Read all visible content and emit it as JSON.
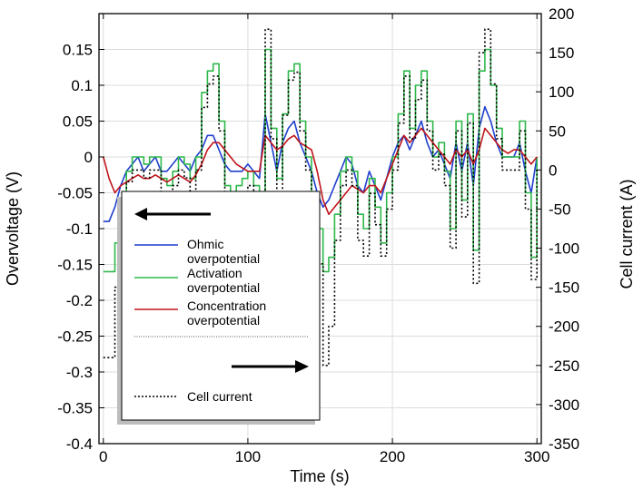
{
  "chart_data": {
    "type": "line",
    "xlabel": "Time (s)",
    "ylabel_left": "Overvoltage (V)",
    "ylabel_right": "Cell current (A)",
    "xlim": [
      -3,
      303
    ],
    "ylim_left": [
      -0.4,
      0.2
    ],
    "ylim_right": [
      -350,
      200
    ],
    "x_ticks": [
      0,
      100,
      200,
      300
    ],
    "y_ticks_left": [
      -0.4,
      -0.35,
      -0.3,
      -0.25,
      -0.2,
      -0.15,
      -0.1,
      -0.05,
      0,
      0.05,
      0.1,
      0.15
    ],
    "y_ticks_left_labels": [
      "-0.4",
      "-0.35",
      "-0.3",
      "-0.25",
      "-0.2",
      "-0.15",
      "-0.1",
      "-0.05",
      "0",
      "0.05",
      "0.1",
      "0.15"
    ],
    "y_ticks_right": [
      -350,
      -300,
      -250,
      -200,
      -150,
      -100,
      -50,
      0,
      50,
      100,
      150,
      200
    ],
    "grid": true,
    "legend_placement": "left-center",
    "legend_left_arrow": "←",
    "legend_right_arrow": "→",
    "series": [
      {
        "name": "Ohmic overpotential",
        "label_lines": [
          "Ohmic",
          "overpotential"
        ],
        "axis": "left",
        "color": "#1f3fcc",
        "style": "solid",
        "x": [
          0,
          4,
          8,
          12,
          16,
          20,
          24,
          28,
          32,
          36,
          40,
          44,
          48,
          52,
          56,
          60,
          64,
          68,
          72,
          76,
          80,
          84,
          88,
          92,
          96,
          100,
          104,
          108,
          112,
          116,
          120,
          124,
          128,
          132,
          136,
          140,
          144,
          148,
          152,
          156,
          160,
          164,
          168,
          172,
          176,
          180,
          184,
          188,
          192,
          196,
          200,
          204,
          208,
          212,
          216,
          220,
          224,
          228,
          232,
          236,
          240,
          244,
          248,
          252,
          256,
          260,
          264,
          268,
          272,
          276,
          280,
          284,
          288,
          292,
          296,
          300
        ],
        "y": [
          -0.09,
          -0.09,
          -0.07,
          -0.04,
          -0.02,
          -0.01,
          0,
          -0.02,
          -0.01,
          0,
          -0.02,
          -0.02,
          -0.01,
          0,
          -0.01,
          -0.02,
          0,
          0.01,
          0.03,
          0.03,
          0.01,
          -0.01,
          -0.02,
          -0.02,
          -0.02,
          -0.01,
          -0.02,
          -0.03,
          0.06,
          0.02,
          -0.02,
          0.02,
          0.04,
          0.05,
          0.02,
          0,
          -0.02,
          -0.05,
          -0.07,
          -0.06,
          -0.04,
          -0.02,
          0,
          -0.01,
          -0.04,
          -0.05,
          -0.02,
          -0.04,
          -0.06,
          -0.03,
          0,
          0.02,
          0.03,
          0.01,
          0.03,
          0.05,
          0.02,
          0,
          0.01,
          -0.01,
          -0.03,
          0.02,
          -0.02,
          0.02,
          -0.04,
          0.04,
          0.07,
          0.05,
          0.02,
          0,
          0,
          0,
          0.02,
          -0.02,
          -0.05,
          0
        ]
      },
      {
        "name": "Activation overpotential",
        "label_lines": [
          "Activation",
          "overpotential"
        ],
        "axis": "left",
        "color": "#2db84a",
        "style": "solid",
        "x": [
          0,
          4,
          8,
          12,
          16,
          20,
          24,
          28,
          32,
          36,
          40,
          44,
          48,
          52,
          56,
          60,
          64,
          68,
          72,
          76,
          80,
          84,
          88,
          92,
          96,
          100,
          104,
          108,
          112,
          116,
          120,
          124,
          128,
          132,
          136,
          140,
          144,
          148,
          152,
          156,
          160,
          164,
          168,
          172,
          176,
          180,
          184,
          188,
          192,
          196,
          200,
          204,
          208,
          212,
          216,
          220,
          224,
          228,
          232,
          236,
          240,
          244,
          248,
          252,
          256,
          260,
          264,
          268,
          272,
          276,
          280,
          284,
          288,
          292,
          296,
          300
        ],
        "y": [
          -0.16,
          -0.16,
          -0.12,
          -0.06,
          -0.02,
          0,
          0,
          -0.01,
          0,
          0,
          -0.03,
          -0.04,
          -0.02,
          0,
          -0.01,
          -0.03,
          0,
          0.09,
          0.12,
          0.13,
          0.05,
          -0.04,
          -0.06,
          -0.04,
          -0.03,
          -0.02,
          -0.04,
          -0.06,
          0.15,
          0.04,
          -0.03,
          0.06,
          0.12,
          0.13,
          0.05,
          0,
          -0.05,
          -0.1,
          -0.16,
          -0.14,
          -0.08,
          -0.02,
          0,
          -0.02,
          -0.08,
          -0.1,
          -0.03,
          -0.07,
          -0.12,
          -0.05,
          0,
          0.06,
          0.12,
          0.04,
          0.1,
          0.12,
          0.05,
          0,
          0.02,
          -0.02,
          -0.1,
          0.05,
          -0.06,
          0.06,
          -0.13,
          0.12,
          0.15,
          0.1,
          0.04,
          0,
          0,
          0,
          0.05,
          -0.05,
          -0.14,
          0
        ]
      },
      {
        "name": "Concentration overpotential",
        "label_lines": [
          "Concentration",
          "overpotential"
        ],
        "axis": "left",
        "color": "#c0141a",
        "style": "solid",
        "x": [
          0,
          4,
          8,
          12,
          16,
          20,
          24,
          28,
          32,
          36,
          40,
          44,
          48,
          52,
          56,
          60,
          64,
          68,
          72,
          76,
          80,
          84,
          88,
          92,
          96,
          100,
          104,
          108,
          112,
          116,
          120,
          124,
          128,
          132,
          136,
          140,
          144,
          148,
          152,
          156,
          160,
          164,
          168,
          172,
          176,
          180,
          184,
          188,
          192,
          196,
          200,
          204,
          208,
          212,
          216,
          220,
          224,
          228,
          232,
          236,
          240,
          244,
          248,
          252,
          256,
          260,
          264,
          268,
          272,
          276,
          280,
          284,
          288,
          292,
          296,
          300
        ],
        "y": [
          0,
          -0.03,
          -0.05,
          -0.04,
          -0.035,
          -0.03,
          -0.025,
          -0.03,
          -0.03,
          -0.025,
          -0.03,
          -0.035,
          -0.03,
          -0.025,
          -0.03,
          -0.035,
          -0.025,
          -0.01,
          0.01,
          0.02,
          0.02,
          0.01,
          0,
          -0.01,
          -0.015,
          -0.02,
          -0.02,
          -0.02,
          0.03,
          0.02,
          0.01,
          0.015,
          0.025,
          0.03,
          0.02,
          0.015,
          0.01,
          -0.02,
          -0.06,
          -0.08,
          -0.07,
          -0.06,
          -0.05,
          -0.04,
          -0.045,
          -0.05,
          -0.04,
          -0.04,
          -0.05,
          -0.03,
          -0.01,
          0.01,
          0.03,
          0.02,
          0.03,
          0.04,
          0.03,
          0.02,
          0.01,
          0,
          -0.01,
          0.01,
          0,
          0.01,
          -0.01,
          0.01,
          0.04,
          0.03,
          0.02,
          0.01,
          0.005,
          0.01,
          0.01,
          0,
          -0.01,
          0
        ]
      },
      {
        "name": "Cell current",
        "label_lines": [
          "Cell current"
        ],
        "axis": "right",
        "color": "#000000",
        "style": "dotted",
        "x": [
          0,
          4,
          8,
          12,
          16,
          20,
          24,
          28,
          32,
          36,
          40,
          44,
          48,
          52,
          56,
          60,
          64,
          68,
          72,
          76,
          80,
          84,
          88,
          92,
          96,
          100,
          104,
          108,
          112,
          116,
          120,
          124,
          128,
          132,
          136,
          140,
          144,
          148,
          152,
          156,
          160,
          164,
          168,
          172,
          176,
          180,
          184,
          188,
          192,
          196,
          200,
          204,
          208,
          212,
          216,
          220,
          224,
          228,
          232,
          236,
          240,
          244,
          248,
          252,
          256,
          260,
          264,
          268,
          272,
          276,
          280,
          284,
          288,
          292,
          296,
          300
        ],
        "y": [
          -240,
          -240,
          -150,
          -60,
          -15,
          0,
          0,
          -10,
          0,
          0,
          -40,
          -50,
          -20,
          0,
          -10,
          -40,
          0,
          80,
          110,
          120,
          50,
          -45,
          -60,
          -45,
          -35,
          -20,
          -40,
          -70,
          180,
          40,
          -30,
          70,
          115,
          125,
          50,
          0,
          -50,
          -120,
          -250,
          -200,
          -90,
          -20,
          0,
          -20,
          -90,
          -110,
          -30,
          -70,
          -110,
          -50,
          0,
          60,
          120,
          40,
          90,
          115,
          50,
          0,
          20,
          -20,
          -100,
          50,
          -60,
          60,
          -145,
          150,
          180,
          110,
          40,
          0,
          0,
          0,
          50,
          -50,
          -140,
          0
        ]
      }
    ]
  }
}
